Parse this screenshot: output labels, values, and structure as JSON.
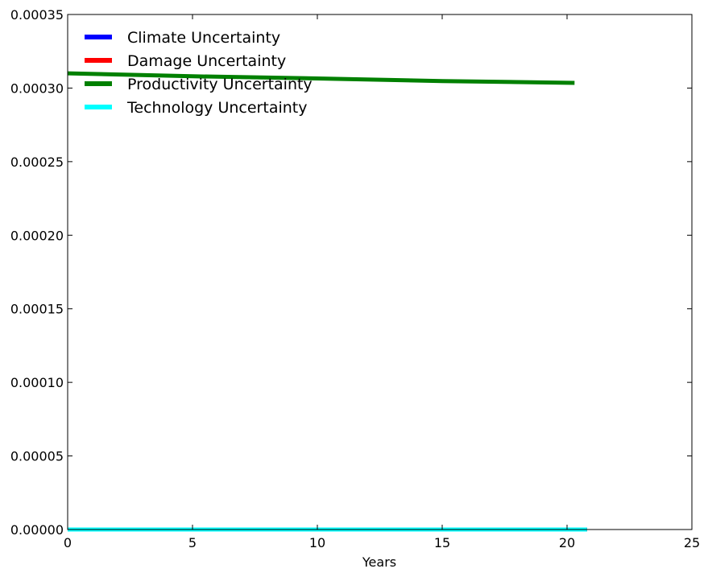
{
  "chart_data": {
    "type": "line",
    "title": "",
    "xlabel": "Years",
    "ylabel": "",
    "xlim": [
      0,
      25
    ],
    "ylim": [
      0,
      0.00035
    ],
    "x_ticks": [
      0,
      5,
      10,
      15,
      20,
      25
    ],
    "x_tick_labels": [
      "0",
      "5",
      "10",
      "15",
      "20",
      "25"
    ],
    "y_ticks": [
      0,
      5e-05,
      0.0001,
      0.00015,
      0.0002,
      0.00025,
      0.0003,
      0.00035
    ],
    "y_tick_labels": [
      "0.00000",
      "0.00005",
      "0.00010",
      "0.00015",
      "0.00020",
      "0.00025",
      "0.00030",
      "0.00035"
    ],
    "grid": false,
    "legend_position": "top-left",
    "series": [
      {
        "name": "Climate Uncertainty",
        "color": "#0000ff",
        "x": [
          0,
          20.8
        ],
        "values": [
          0,
          0
        ]
      },
      {
        "name": "Damage Uncertainty",
        "color": "#ff0000",
        "x": [
          0,
          20.8
        ],
        "values": [
          0,
          0
        ]
      },
      {
        "name": "Productivity Uncertainty",
        "color": "#008000",
        "x": [
          0,
          5,
          10,
          15,
          20.3
        ],
        "values": [
          0.00031,
          0.000308,
          0.0003065,
          0.0003048,
          0.0003035
        ]
      },
      {
        "name": "Technology Uncertainty",
        "color": "#00ffff",
        "x": [
          0,
          20.8
        ],
        "values": [
          0,
          0
        ]
      }
    ]
  }
}
